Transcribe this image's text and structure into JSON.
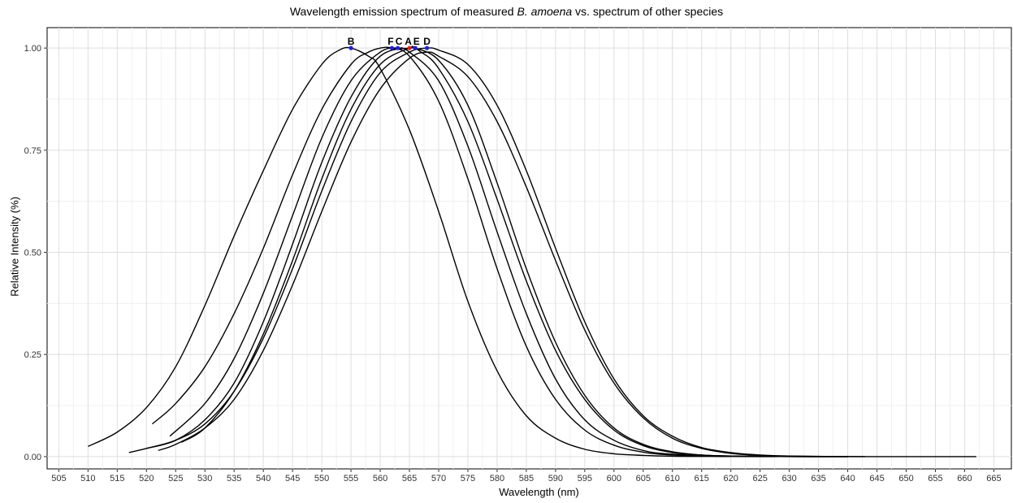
{
  "title_prefix": "Wavelength emission spectrum of measured ",
  "title_species": "B. amoena",
  "title_suffix": " vs. spectrum of other species",
  "chart_data": {
    "type": "line",
    "title": "Wavelength emission spectrum of measured B. amoena vs. spectrum of other species",
    "xlabel": "Wavelength (nm)",
    "ylabel": "Relative Intensity (%)",
    "xlim": [
      503,
      668
    ],
    "ylim": [
      -0.03,
      1.05
    ],
    "x_ticks": [
      505,
      510,
      515,
      520,
      525,
      530,
      535,
      540,
      545,
      550,
      555,
      560,
      565,
      570,
      575,
      580,
      585,
      590,
      595,
      600,
      605,
      610,
      615,
      620,
      625,
      630,
      635,
      640,
      645,
      650,
      655,
      660,
      665
    ],
    "y_ticks": [
      0.0,
      0.25,
      0.5,
      0.75,
      1.0
    ],
    "y_tick_labels": [
      "0.00",
      "0.25",
      "0.50",
      "0.75",
      "1.00"
    ],
    "grid": true,
    "line_color": "#000000",
    "series": [
      {
        "x": [
          510,
          515,
          520,
          525,
          530,
          535,
          540,
          545,
          550,
          553,
          555,
          558,
          560,
          565,
          570,
          575,
          580,
          585,
          590,
          595,
          600,
          605,
          610,
          615,
          620
        ],
        "y": [
          0.025,
          0.06,
          0.12,
          0.22,
          0.37,
          0.54,
          0.7,
          0.85,
          0.96,
          0.995,
          1.0,
          0.98,
          0.95,
          0.8,
          0.6,
          0.38,
          0.21,
          0.1,
          0.045,
          0.018,
          0.007,
          0.003,
          0.001,
          0.0005,
          0.0002
        ]
      },
      {
        "x": [
          521,
          525,
          530,
          535,
          540,
          545,
          550,
          555,
          558,
          560,
          562,
          565,
          570,
          575,
          580,
          585,
          590,
          595,
          600,
          605,
          610,
          620,
          630,
          640
        ],
        "y": [
          0.08,
          0.13,
          0.22,
          0.35,
          0.51,
          0.69,
          0.85,
          0.96,
          0.99,
          1.0,
          1.0,
          0.98,
          0.87,
          0.68,
          0.46,
          0.27,
          0.14,
          0.065,
          0.028,
          0.011,
          0.004,
          0.0005,
          0.0001,
          0.0
        ],
        "peak_wavelength": 562,
        "label": "F"
      },
      {
        "x": [
          524,
          530,
          535,
          540,
          545,
          550,
          555,
          560,
          563,
          565,
          570,
          575,
          580,
          585,
          590,
          595,
          600,
          605,
          610,
          620,
          630,
          640
        ],
        "y": [
          0.05,
          0.13,
          0.24,
          0.4,
          0.59,
          0.78,
          0.92,
          0.99,
          1.0,
          0.99,
          0.92,
          0.76,
          0.55,
          0.35,
          0.19,
          0.09,
          0.04,
          0.015,
          0.006,
          0.001,
          0.0002,
          0.0
        ],
        "peak_wavelength": 563,
        "label": "C"
      },
      {
        "x": [
          517,
          520,
          525,
          530,
          535,
          540,
          545,
          550,
          555,
          560,
          565,
          567,
          570,
          575,
          580,
          585,
          590,
          595,
          600,
          605,
          610,
          615,
          620,
          630,
          640
        ],
        "y": [
          0.01,
          0.02,
          0.04,
          0.09,
          0.18,
          0.33,
          0.52,
          0.72,
          0.88,
          0.98,
          1.0,
          0.99,
          0.95,
          0.82,
          0.63,
          0.43,
          0.26,
          0.14,
          0.065,
          0.027,
          0.01,
          0.004,
          0.0015,
          0.0002,
          0.0
        ],
        "peak_wavelength": 565,
        "label": "A",
        "color": "#d81b1b"
      },
      {
        "x": [
          526,
          530,
          535,
          540,
          545,
          550,
          555,
          560,
          565,
          566,
          570,
          575,
          580,
          585,
          590,
          595,
          600,
          605,
          610,
          615,
          620,
          630,
          640
        ],
        "y": [
          0.035,
          0.07,
          0.16,
          0.3,
          0.48,
          0.68,
          0.85,
          0.96,
          1.0,
          1.0,
          0.97,
          0.86,
          0.67,
          0.46,
          0.28,
          0.15,
          0.07,
          0.03,
          0.012,
          0.004,
          0.0015,
          0.0002,
          0.0
        ],
        "peak_wavelength": 566,
        "label": "E"
      },
      {
        "x": [
          520,
          525,
          530,
          535,
          540,
          545,
          550,
          555,
          560,
          565,
          568,
          570,
          575,
          580,
          585,
          590,
          595,
          600,
          605,
          610,
          615,
          620,
          625,
          630,
          640,
          650,
          662
        ],
        "y": [
          0.02,
          0.04,
          0.08,
          0.16,
          0.29,
          0.46,
          0.65,
          0.82,
          0.94,
          0.99,
          1.0,
          0.995,
          0.96,
          0.86,
          0.7,
          0.51,
          0.33,
          0.19,
          0.1,
          0.05,
          0.022,
          0.01,
          0.004,
          0.0015,
          0.0002,
          0.0,
          0.0
        ],
        "peak_wavelength": 568,
        "label": "D"
      },
      {
        "x": [
          522,
          525,
          530,
          535,
          540,
          545,
          550,
          555,
          560,
          565,
          568,
          570,
          575,
          580,
          585,
          590,
          595,
          600,
          605,
          610,
          615,
          620,
          625,
          630,
          640,
          643
        ],
        "y": [
          0.015,
          0.03,
          0.07,
          0.14,
          0.26,
          0.42,
          0.6,
          0.77,
          0.9,
          0.975,
          0.99,
          0.98,
          0.93,
          0.82,
          0.66,
          0.48,
          0.31,
          0.18,
          0.095,
          0.045,
          0.02,
          0.008,
          0.003,
          0.001,
          0.0001,
          0.0
        ]
      }
    ],
    "peak_markers": [
      {
        "label": "B",
        "x": 555,
        "y": 1.0,
        "color": "#1f1fe0"
      },
      {
        "label": "F",
        "x": 562,
        "y": 1.0,
        "color": "#1f1fe0"
      },
      {
        "label": "C",
        "x": 563,
        "y": 1.0,
        "color": "#1f1fe0"
      },
      {
        "label": "A",
        "x": 565,
        "y": 1.0,
        "color": "#e01f1f"
      },
      {
        "label": "E",
        "x": 566,
        "y": 1.0,
        "color": "#1f1fe0"
      },
      {
        "label": "D",
        "x": 568,
        "y": 1.0,
        "color": "#1f1fe0"
      }
    ]
  }
}
